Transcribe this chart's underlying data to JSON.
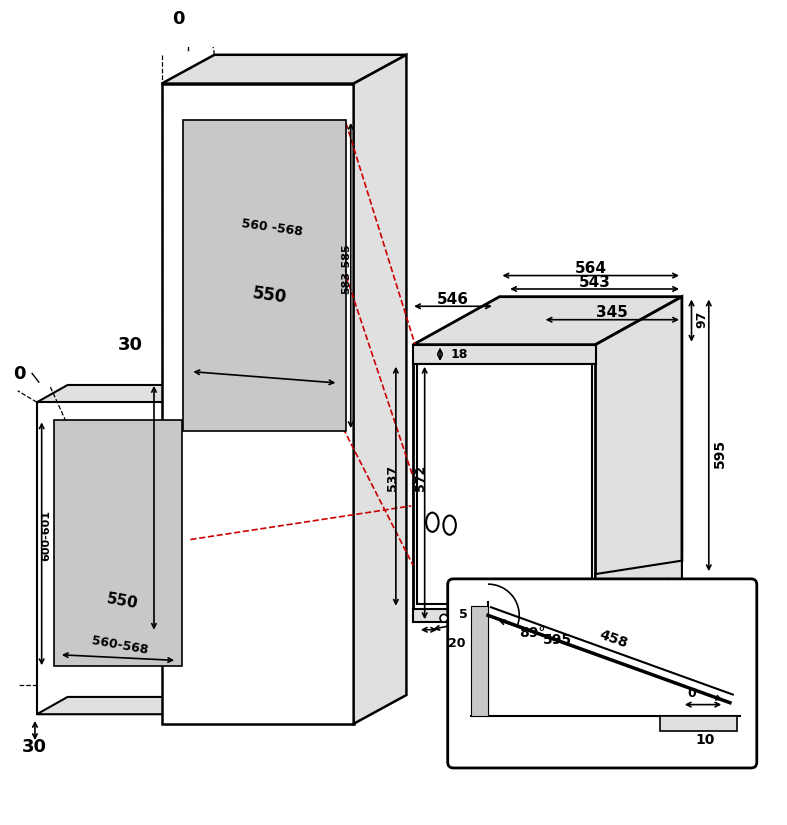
{
  "bg_color": "#ffffff",
  "line_color": "#000000",
  "red_dashed": "#cc0000",
  "gray_fill": "#c8c8c8",
  "light_gray": "#e0e0e0",
  "annotations": {
    "top_0": "0",
    "left_0": "0",
    "bottom_30": "30",
    "dim_560_568_upper": "560 -568",
    "dim_583_585": "583-585",
    "dim_550_upper": "550",
    "dim_30_left": "30",
    "dim_600_601": "600-601",
    "dim_560_568_lower": "560-568",
    "dim_550_lower": "550",
    "dim_564": "564",
    "dim_543": "543",
    "dim_546": "546",
    "dim_345": "345",
    "dim_18": "18",
    "dim_97": "97",
    "dim_537": "537",
    "dim_572": "572",
    "dim_595_horiz": "595",
    "dim_595_vert": "595",
    "dim_5": "5",
    "dim_20": "20",
    "dim_458": "458",
    "dim_89": "89°",
    "dim_0_door": "0",
    "dim_10": "10"
  }
}
